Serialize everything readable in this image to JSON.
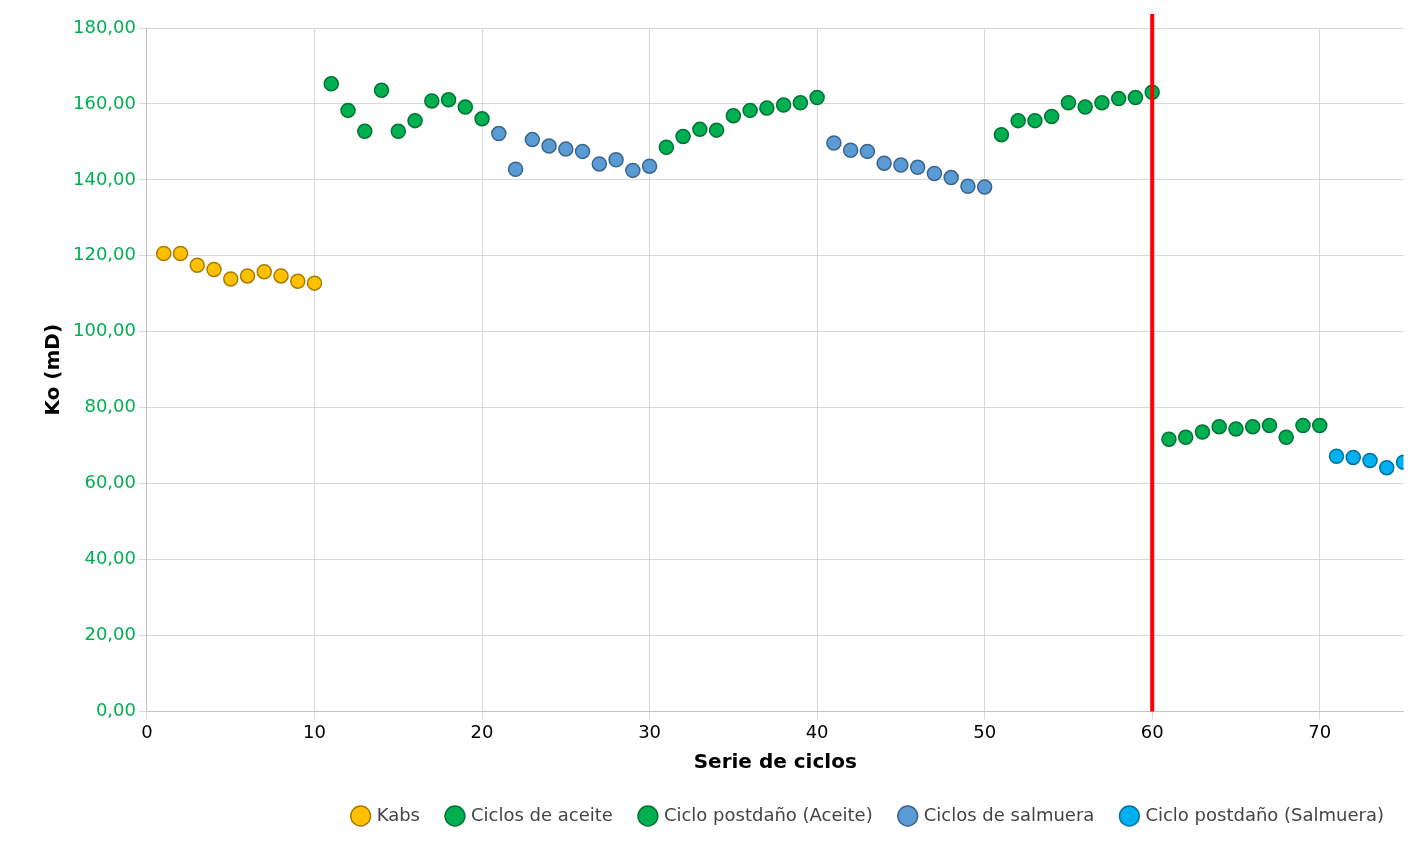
{
  "chart_data": {
    "type": "scatter",
    "xlabel": "Serie de ciclos",
    "ylabel": "Ko (mD)",
    "xlim": [
      0,
      75
    ],
    "xticks": [
      0,
      10,
      20,
      30,
      40,
      50,
      60,
      70
    ],
    "ylim": [
      0,
      180
    ],
    "yticks": [
      {
        "value": 0,
        "label": "0,00"
      },
      {
        "value": 20,
        "label": "20,00"
      },
      {
        "value": 40,
        "label": "40,00"
      },
      {
        "value": 60,
        "label": "60,00"
      },
      {
        "value": 80,
        "label": "80,00"
      },
      {
        "value": 100,
        "label": "100,00"
      },
      {
        "value": 120,
        "label": "120,00"
      },
      {
        "value": 140,
        "label": "140,00"
      },
      {
        "value": 160,
        "label": "160,00"
      },
      {
        "value": 180,
        "label": "180,00"
      }
    ],
    "grid": true,
    "legend": "bottom",
    "marker": "circle",
    "ref_lines": [
      {
        "axis": "x",
        "value": 60,
        "color": "#ff0000"
      }
    ],
    "series": [
      {
        "name": "Kabs",
        "color": "#ffc000",
        "x": [
          1,
          2,
          3,
          4,
          5,
          6,
          7,
          8,
          9,
          10
        ],
        "values": [
          120.6,
          120.6,
          117.5,
          116.4,
          113.9,
          114.7,
          115.8,
          114.7,
          113.3,
          112.8
        ]
      },
      {
        "name": "Ciclos de aceite",
        "color": "#00b050",
        "x": [
          11,
          12,
          13,
          14,
          15,
          16,
          17,
          18,
          19,
          20,
          31,
          32,
          33,
          34,
          35,
          36,
          37,
          38,
          39,
          40,
          51,
          52,
          53,
          54,
          55,
          56,
          57,
          58,
          59,
          60
        ],
        "values": [
          165.3,
          158.3,
          152.8,
          163.6,
          152.8,
          155.6,
          160.8,
          161.1,
          159.2,
          156.1,
          148.6,
          151.4,
          153.3,
          153.1,
          156.9,
          158.3,
          158.9,
          159.7,
          160.3,
          161.7,
          151.9,
          155.6,
          155.6,
          156.7,
          160.3,
          159.2,
          160.3,
          161.4,
          161.7,
          163.1
        ]
      },
      {
        "name": "Ciclo postdaño (Aceite)",
        "color": "#00b050",
        "x": [
          61,
          62,
          63,
          64,
          65,
          66,
          67,
          68,
          69,
          70
        ],
        "values": [
          71.7,
          72.2,
          73.6,
          75.0,
          74.4,
          75.0,
          75.3,
          72.2,
          75.3,
          75.3
        ]
      },
      {
        "name": "Ciclos de salmuera",
        "color": "#5b9bd5",
        "x": [
          21,
          22,
          23,
          24,
          25,
          26,
          27,
          28,
          29,
          30,
          41,
          42,
          43,
          44,
          45,
          46,
          47,
          48,
          49,
          50
        ],
        "values": [
          152.2,
          142.8,
          150.6,
          148.9,
          148.1,
          147.5,
          144.2,
          145.3,
          142.5,
          143.6,
          149.7,
          147.8,
          147.5,
          144.4,
          143.9,
          143.3,
          141.7,
          140.6,
          138.3,
          138.1
        ]
      },
      {
        "name": "Ciclo postdaño (Salmuera)",
        "color": "#00b0f0",
        "x": [
          71,
          72,
          73,
          74,
          75
        ],
        "values": [
          67.2,
          66.9,
          66.1,
          64.2,
          65.6
        ]
      }
    ]
  }
}
